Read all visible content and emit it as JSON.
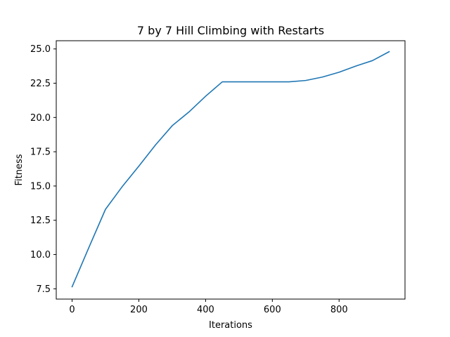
{
  "chart_data": {
    "type": "line",
    "title": "7 by 7 Hill Climbing with Restarts",
    "xlabel": "Iterations",
    "ylabel": "Fitness",
    "xlim": [
      -47.5,
      997.5
    ],
    "ylim": [
      6.75,
      25.6
    ],
    "x_ticks": [
      0,
      200,
      400,
      600,
      800
    ],
    "y_ticks": [
      7.5,
      10.0,
      12.5,
      15.0,
      17.5,
      20.0,
      22.5,
      25.0
    ],
    "grid": false,
    "series": [
      {
        "color": "#1f77b4",
        "x": [
          0,
          50,
          100,
          150,
          200,
          250,
          300,
          350,
          400,
          450,
          500,
          550,
          600,
          650,
          700,
          750,
          800,
          850,
          900,
          950
        ],
        "y": [
          7.65,
          10.5,
          13.3,
          14.95,
          16.45,
          18.0,
          19.4,
          20.4,
          21.55,
          22.6,
          22.6,
          22.6,
          22.6,
          22.6,
          22.7,
          22.95,
          23.3,
          23.75,
          24.15,
          24.8
        ]
      }
    ]
  }
}
